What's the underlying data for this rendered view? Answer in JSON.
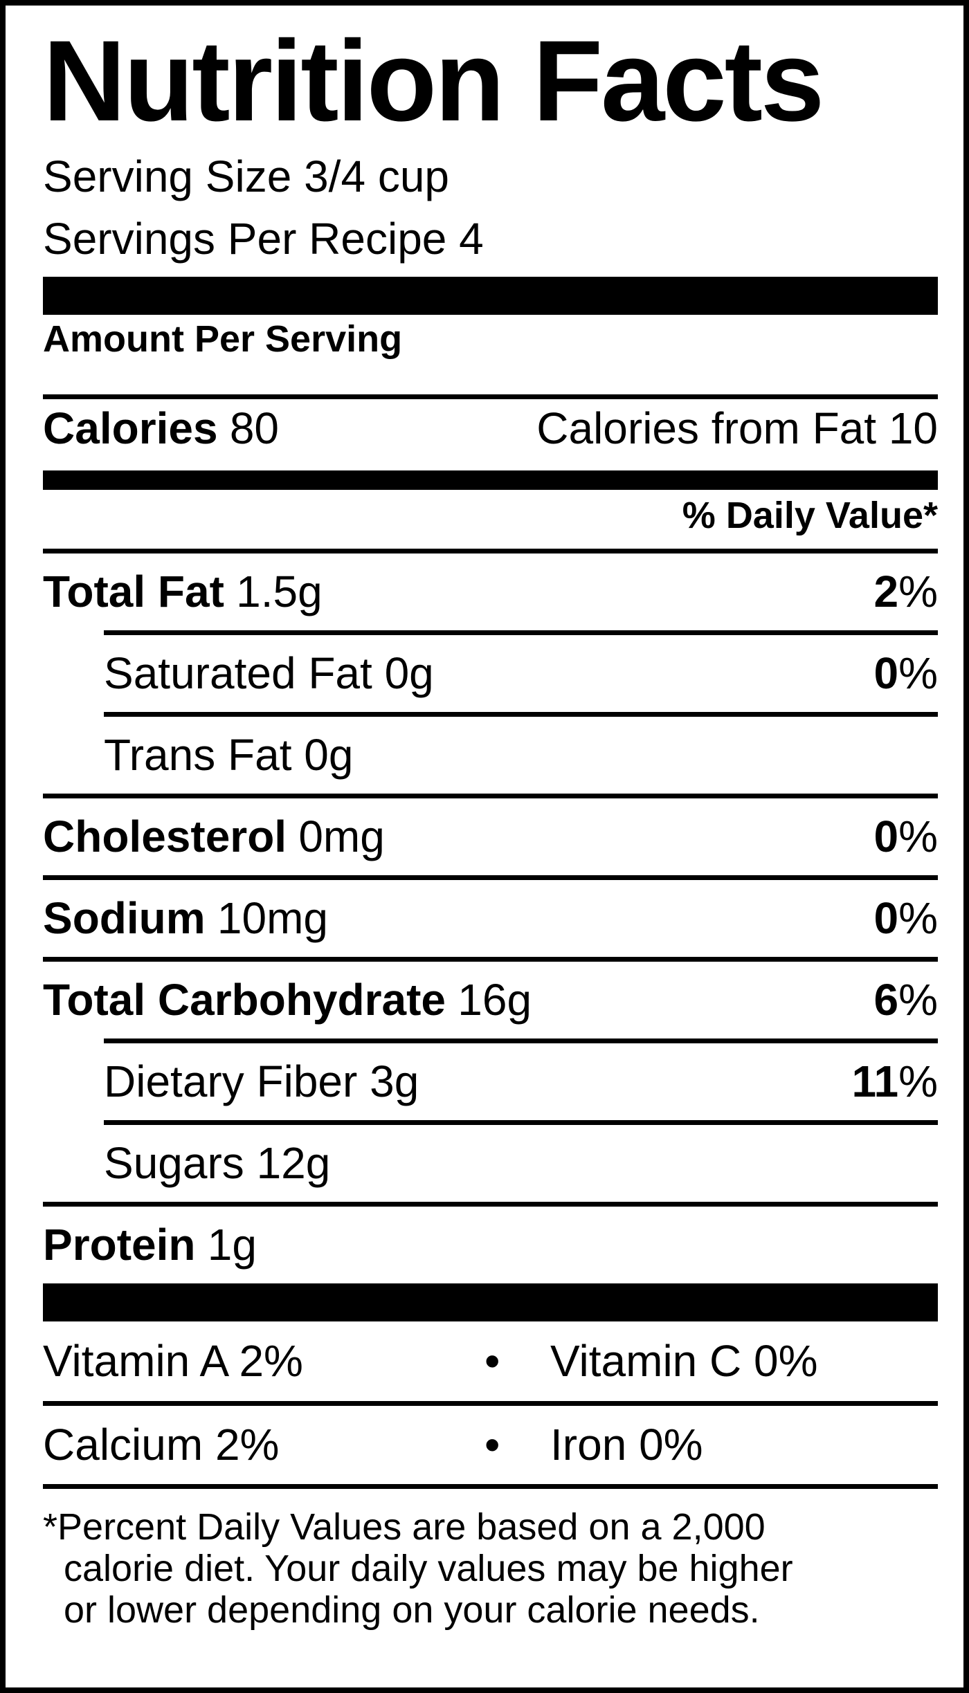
{
  "title": "Nutrition Facts",
  "serving": {
    "size": "Serving Size 3/4 cup",
    "per_recipe": "Servings Per Recipe 4"
  },
  "amount_per_serving_label": "Amount Per Serving",
  "calories": {
    "label": "Calories",
    "value": "80",
    "from_fat_label": "Calories from Fat 10"
  },
  "daily_value_header": "% Daily Value*",
  "nutrients": [
    {
      "label": "Total Fat",
      "amount": "1.5g",
      "dv": "2",
      "pct": "%"
    },
    {
      "label": "",
      "amount": "Saturated Fat 0g",
      "dv": "0",
      "pct": "%"
    },
    {
      "label": "",
      "amount": "Trans Fat 0g",
      "dv": "",
      "pct": ""
    },
    {
      "label": "Cholesterol",
      "amount": "0mg",
      "dv": "0",
      "pct": "%"
    },
    {
      "label": "Sodium",
      "amount": "10mg",
      "dv": "0",
      "pct": "%"
    },
    {
      "label": "Total Carbohydrate",
      "amount": "16g",
      "dv": "6",
      "pct": "%"
    },
    {
      "label": "",
      "amount": "Dietary Fiber 3g",
      "dv": "11",
      "pct": "%"
    },
    {
      "label": "",
      "amount": "Sugars 12g",
      "dv": "",
      "pct": ""
    },
    {
      "label": "Protein",
      "amount": "1g",
      "dv": "",
      "pct": ""
    }
  ],
  "vitamins": {
    "separator": "•",
    "rows": [
      {
        "left": "Vitamin A 2%",
        "right": "Vitamin C 0%"
      },
      {
        "left": "Calcium 2%",
        "right": "Iron 0%"
      }
    ]
  },
  "footnote": {
    "line1": "*Percent Daily Values are based on a 2,000",
    "line2": "calorie diet. Your daily values may be higher",
    "line3": "or lower depending on your calorie needs."
  },
  "colors": {
    "ink": "#000000",
    "background": "#ffffff"
  }
}
